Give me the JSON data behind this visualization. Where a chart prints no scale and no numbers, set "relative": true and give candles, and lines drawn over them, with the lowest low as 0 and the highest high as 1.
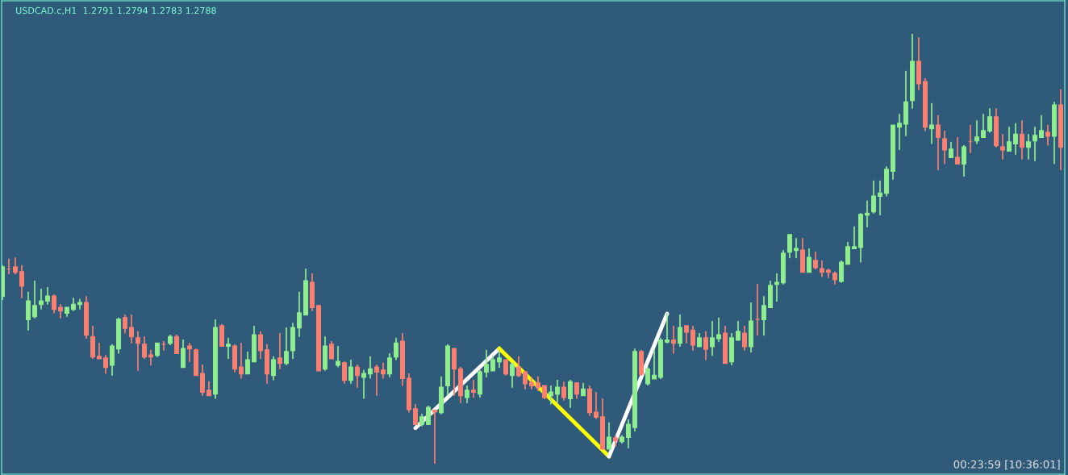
{
  "chart_data": {
    "type": "candlestick",
    "title": "USDCAD.c,H1  1.2791 1.2794 1.2783 1.2788",
    "relative": true,
    "colors": [
      "#90ee90",
      "#fa8072",
      "#fa8072",
      "#fa8072",
      "#90ee90",
      "#90ee90",
      "#90ee90",
      "#90ee90",
      "#fa8072",
      "#fa8072",
      "#90ee90",
      "#90ee90",
      "#90ee90",
      "#fa8072",
      "#fa8072",
      "#fa8072",
      "#fa8072",
      "#90ee90",
      "#90ee90",
      "#fa8072",
      "#fa8072",
      "#fa8072",
      "#fa8072",
      "#fa8072",
      "#90ee90",
      "#fa8072",
      "#90ee90",
      "#fa8072",
      "#90ee90",
      "#fa8072",
      "#fa8072",
      "#fa8072",
      "#fa8072",
      "#90ee90",
      "#fa8072",
      "#90ee90",
      "#fa8072",
      "#fa8072",
      "#90ee90",
      "#90ee90",
      "#fa8072",
      "#fa8072",
      "#90ee90",
      "#fa8072",
      "#90ee90",
      "#90ee90",
      "#90ee90",
      "#90ee90",
      "#fa8072",
      "#fa8072",
      "#90ee90",
      "#fa8072",
      "#90ee90",
      "#fa8072",
      "#90ee90",
      "#fa8072",
      "#90ee90",
      "#90ee90",
      "#fa8072",
      "#fa8072",
      "#90ee90",
      "#90ee90",
      "#fa8072",
      "#fa8072",
      "#fa8072",
      "#90ee90",
      "#90ee90",
      "#fa8072",
      "#90ee90",
      "#90ee90",
      "#fa8072",
      "#fa8072",
      "#90ee90",
      "#fa8072",
      "#90ee90",
      "#90ee90",
      "#90ee90",
      "#90ee90",
      "#fa8072",
      "#90ee90",
      "#fa8072",
      "#fa8072",
      "#fa8072",
      "#fa8072",
      "#fa8072",
      "#90ee90",
      "#90ee90",
      "#fa8072",
      "#90ee90",
      "#fa8072",
      "#90ee90",
      "#fa8072",
      "#fa8072",
      "#fa8072",
      "#90ee90",
      "#fa8072",
      "#90ee90",
      "#90ee90",
      "#90ee90",
      "#fa8072",
      "#90ee90",
      "#90ee90",
      "#90ee90",
      "#90ee90",
      "#fa8072",
      "#90ee90",
      "#fa8072",
      "#fa8072",
      "#90ee90",
      "#fa8072",
      "#90ee90",
      "#90ee90",
      "#fa8072",
      "#90ee90",
      "#90ee90",
      "#fa8072",
      "#90ee90",
      "#fa8072",
      "#90ee90",
      "#90ee90",
      "#90ee90",
      "#90ee90",
      "#90ee90",
      "#90ee90",
      "#fa8072",
      "#90ee90",
      "#fa8072",
      "#fa8072",
      "#fa8072",
      "#fa8072",
      "#90ee90",
      "#90ee90",
      "#90ee90",
      "#90ee90",
      "#90ee90",
      "#90ee90",
      "#90ee90",
      "#90ee90",
      "#90ee90",
      "#90ee90",
      "#90ee90",
      "#90ee90",
      "#fa8072",
      "#fa8072",
      "#90ee90",
      "#fa8072",
      "#fa8072",
      "#90ee90",
      "#fa8072",
      "#90ee90",
      "#fa8072",
      "#90ee90",
      "#90ee90",
      "#90ee90",
      "#fa8072",
      "#fa8072",
      "#90ee90",
      "#90ee90",
      "#fa8072",
      "#90ee90",
      "#90ee90",
      "#90ee90",
      "#fa8072",
      "#90ee90",
      "#fa8072"
    ],
    "annotations": [
      "00:23:59 [10:36:01]"
    ],
    "categories": [
      null,
      null,
      null,
      null,
      null,
      null,
      null,
      null,
      null,
      null,
      null,
      null,
      null,
      null,
      null,
      null,
      null,
      null,
      null,
      null,
      null,
      null,
      null,
      null,
      null,
      null,
      null,
      null,
      null,
      null,
      null,
      null,
      null,
      null,
      null,
      null,
      null,
      null,
      null,
      null,
      null,
      null,
      null,
      null,
      null,
      null,
      null,
      null,
      null,
      null,
      null,
      null,
      null,
      null,
      null,
      null,
      null,
      null,
      null,
      null,
      null,
      null,
      null,
      null,
      null,
      null,
      null,
      null,
      null,
      null,
      null,
      null,
      null,
      null,
      null,
      null,
      null,
      null,
      null,
      null,
      null,
      null,
      null,
      null,
      null,
      null,
      null,
      null,
      null,
      null,
      null,
      null,
      null,
      null,
      null,
      null,
      null,
      null,
      null,
      null,
      null,
      null,
      null,
      null,
      null,
      null,
      null,
      null,
      null,
      null,
      null,
      null,
      null,
      null,
      null,
      null,
      null,
      null,
      null,
      null,
      null,
      null,
      null,
      null,
      null,
      null,
      null,
      null,
      null,
      null,
      null,
      null,
      null,
      null,
      null,
      null,
      null,
      null,
      null,
      null,
      null,
      null,
      null,
      null,
      null,
      null,
      null,
      null,
      null,
      null,
      null,
      null,
      null,
      null,
      null,
      null,
      null,
      null,
      null,
      null,
      null,
      null,
      null,
      null,
      null
    ],
    "ohlc": [
      [
        0.389,
        0.462,
        0.381,
        0.458
      ],
      [
        0.453,
        0.477,
        0.441,
        0.453
      ],
      [
        0.458,
        0.48,
        0.441,
        0.445
      ],
      [
        0.447,
        0.462,
        0.385,
        0.413
      ],
      [
        0.335,
        0.4,
        0.31,
        0.379
      ],
      [
        0.342,
        0.426,
        0.338,
        0.368
      ],
      [
        0.37,
        0.407,
        0.359,
        0.379
      ],
      [
        0.378,
        0.411,
        0.37,
        0.39
      ],
      [
        0.39,
        0.394,
        0.35,
        0.359
      ],
      [
        0.364,
        0.371,
        0.338,
        0.355
      ],
      [
        0.35,
        0.364,
        0.342,
        0.364
      ],
      [
        0.359,
        0.386,
        0.355,
        0.371
      ],
      [
        0.37,
        0.383,
        0.359,
        0.375
      ],
      [
        0.375,
        0.39,
        0.291,
        0.299
      ],
      [
        0.296,
        0.321,
        0.244,
        0.248
      ],
      [
        0.25,
        0.281,
        0.244,
        0.244
      ],
      [
        0.246,
        0.253,
        0.209,
        0.224
      ],
      [
        0.229,
        0.278,
        0.205,
        0.274
      ],
      [
        0.267,
        0.34,
        0.256,
        0.336
      ],
      [
        0.34,
        0.347,
        0.303,
        0.315
      ],
      [
        0.317,
        0.347,
        0.28,
        0.295
      ],
      [
        0.293,
        0.308,
        0.216,
        0.28
      ],
      [
        0.278,
        0.296,
        0.244,
        0.248
      ],
      [
        0.253,
        0.265,
        0.229,
        0.248
      ],
      [
        0.252,
        0.281,
        0.248,
        0.281
      ],
      [
        0.278,
        0.285,
        0.263,
        0.278
      ],
      [
        0.28,
        0.3,
        0.276,
        0.296
      ],
      [
        0.296,
        0.3,
        0.256,
        0.256
      ],
      [
        0.224,
        0.289,
        0.224,
        0.268
      ],
      [
        0.274,
        0.281,
        0.237,
        0.267
      ],
      [
        0.265,
        0.268,
        0.205,
        0.205
      ],
      [
        0.21,
        0.231,
        0.158,
        0.166
      ],
      [
        0.171,
        0.192,
        0.158,
        0.158
      ],
      [
        0.162,
        0.336,
        0.151,
        0.317
      ],
      [
        0.321,
        0.325,
        0.273,
        0.273
      ],
      [
        0.273,
        0.293,
        0.244,
        0.278
      ],
      [
        0.274,
        0.278,
        0.213,
        0.22
      ],
      [
        0.225,
        0.281,
        0.198,
        0.209
      ],
      [
        0.209,
        0.261,
        0.209,
        0.242
      ],
      [
        0.237,
        0.321,
        0.237,
        0.3
      ],
      [
        0.3,
        0.308,
        0.244,
        0.263
      ],
      [
        0.265,
        0.278,
        0.186,
        0.209
      ],
      [
        0.205,
        0.25,
        0.194,
        0.242
      ],
      [
        0.246,
        0.304,
        0.22,
        0.233
      ],
      [
        0.233,
        0.317,
        0.229,
        0.261
      ],
      [
        0.263,
        0.328,
        0.244,
        0.317
      ],
      [
        0.316,
        0.4,
        0.295,
        0.351
      ],
      [
        0.346,
        0.454,
        0.346,
        0.426
      ],
      [
        0.422,
        0.443,
        0.355,
        0.363
      ],
      [
        0.368,
        0.368,
        0.216,
        0.216
      ],
      [
        0.22,
        0.296,
        0.216,
        0.274
      ],
      [
        0.278,
        0.285,
        0.244,
        0.244
      ],
      [
        0.229,
        0.274,
        0.224,
        0.238
      ],
      [
        0.235,
        0.238,
        0.186,
        0.194
      ],
      [
        0.194,
        0.242,
        0.186,
        0.225
      ],
      [
        0.225,
        0.231,
        0.177,
        0.205
      ],
      [
        0.201,
        0.218,
        0.151,
        0.21
      ],
      [
        0.209,
        0.25,
        0.198,
        0.221
      ],
      [
        0.225,
        0.231,
        0.158,
        0.213
      ],
      [
        0.218,
        0.235,
        0.198,
        0.209
      ],
      [
        0.209,
        0.257,
        0.201,
        0.246
      ],
      [
        0.248,
        0.293,
        0.241,
        0.281
      ],
      [
        0.285,
        0.304,
        0.181,
        0.198
      ],
      [
        0.199,
        0.21,
        0.119,
        0.126
      ],
      [
        0.128,
        0.139,
        0.091,
        0.091
      ],
      [
        0.091,
        0.116,
        0.087,
        0.109
      ],
      [
        0.091,
        0.135,
        0.091,
        0.131
      ],
      [
        0.124,
        0.126,
        0.0,
        0.12
      ],
      [
        0.119,
        0.203,
        0.115,
        0.178
      ],
      [
        0.181,
        0.278,
        0.159,
        0.274
      ],
      [
        0.268,
        0.268,
        0.158,
        0.22
      ],
      [
        0.221,
        0.225,
        0.141,
        0.158
      ],
      [
        0.154,
        0.182,
        0.141,
        0.171
      ],
      [
        0.171,
        0.195,
        0.154,
        0.166
      ],
      [
        0.162,
        0.218,
        0.154,
        0.214
      ],
      [
        0.213,
        0.265,
        0.201,
        0.231
      ],
      [
        0.216,
        0.25,
        0.216,
        0.242
      ],
      [
        0.237,
        0.263,
        0.223,
        0.246
      ],
      [
        0.242,
        0.242,
        0.205,
        0.209
      ],
      [
        0.205,
        0.235,
        0.177,
        0.231
      ],
      [
        0.225,
        0.25,
        0.201,
        0.205
      ],
      [
        0.214,
        0.214,
        0.173,
        0.186
      ],
      [
        0.189,
        0.201,
        0.173,
        0.181
      ],
      [
        0.188,
        0.203,
        0.169,
        0.177
      ],
      [
        0.182,
        0.182,
        0.15,
        0.154
      ],
      [
        0.158,
        0.182,
        0.138,
        0.167
      ],
      [
        0.162,
        0.195,
        0.141,
        0.178
      ],
      [
        0.178,
        0.191,
        0.147,
        0.154
      ],
      [
        0.151,
        0.195,
        0.13,
        0.191
      ],
      [
        0.188,
        0.188,
        0.151,
        0.162
      ],
      [
        0.158,
        0.188,
        0.158,
        0.174
      ],
      [
        0.174,
        0.182,
        0.111,
        0.119
      ],
      [
        0.12,
        0.167,
        0.104,
        0.108
      ],
      [
        0.109,
        0.152,
        0.034,
        0.034
      ],
      [
        0.034,
        0.096,
        0.034,
        0.062
      ],
      [
        0.06,
        0.066,
        0.041,
        0.053
      ],
      [
        0.051,
        0.066,
        0.047,
        0.062
      ],
      [
        0.061,
        0.103,
        0.036,
        0.092
      ],
      [
        0.084,
        0.268,
        0.075,
        0.261
      ],
      [
        0.261,
        0.265,
        0.205,
        0.208
      ],
      [
        0.186,
        0.225,
        0.182,
        0.221
      ],
      [
        0.197,
        0.265,
        0.197,
        0.206
      ],
      [
        0.201,
        0.293,
        0.197,
        0.288
      ],
      [
        0.283,
        0.351,
        0.28,
        0.288
      ],
      [
        0.288,
        0.321,
        0.256,
        0.28
      ],
      [
        0.28,
        0.347,
        0.272,
        0.317
      ],
      [
        0.321,
        0.321,
        0.28,
        0.306
      ],
      [
        0.311,
        0.321,
        0.263,
        0.276
      ],
      [
        0.272,
        0.304,
        0.272,
        0.293
      ],
      [
        0.293,
        0.308,
        0.241,
        0.266
      ],
      [
        0.272,
        0.332,
        0.251,
        0.293
      ],
      [
        0.291,
        0.34,
        0.283,
        0.3
      ],
      [
        0.304,
        0.321,
        0.233,
        0.233
      ],
      [
        0.237,
        0.304,
        0.229,
        0.293
      ],
      [
        0.287,
        0.332,
        0.287,
        0.308
      ],
      [
        0.304,
        0.321,
        0.263,
        0.272
      ],
      [
        0.272,
        0.375,
        0.259,
        0.332
      ],
      [
        0.336,
        0.418,
        0.298,
        0.336
      ],
      [
        0.335,
        0.39,
        0.298,
        0.368
      ],
      [
        0.363,
        0.426,
        0.363,
        0.415
      ],
      [
        0.417,
        0.443,
        0.377,
        0.422
      ],
      [
        0.421,
        0.497,
        0.417,
        0.49
      ],
      [
        0.492,
        0.533,
        0.478,
        0.533
      ],
      [
        0.496,
        0.525,
        0.478,
        0.501
      ],
      [
        0.497,
        0.525,
        0.445,
        0.445
      ],
      [
        0.445,
        0.501,
        0.445,
        0.48
      ],
      [
        0.473,
        0.493,
        0.452,
        0.456
      ],
      [
        0.454,
        0.473,
        0.435,
        0.445
      ],
      [
        0.45,
        0.454,
        0.432,
        0.445
      ],
      [
        0.443,
        0.447,
        0.417,
        0.428
      ],
      [
        0.424,
        0.473,
        0.421,
        0.469
      ],
      [
        0.464,
        0.516,
        0.464,
        0.505
      ],
      [
        0.5,
        0.552,
        0.5,
        0.505
      ],
      [
        0.503,
        0.583,
        0.468,
        0.58
      ],
      [
        0.578,
        0.612,
        0.55,
        0.583
      ],
      [
        0.586,
        0.659,
        0.582,
        0.623
      ],
      [
        0.622,
        0.659,
        0.578,
        0.63
      ],
      [
        0.629,
        0.692,
        0.622,
        0.685
      ],
      [
        0.68,
        0.788,
        0.661,
        0.788
      ],
      [
        0.783,
        0.814,
        0.73,
        0.792
      ],
      [
        0.79,
        0.914,
        0.762,
        0.842
      ],
      [
        0.845,
        1.0,
        0.826,
        0.936
      ],
      [
        0.936,
        0.992,
        0.869,
        0.884
      ],
      [
        0.889,
        0.897,
        0.774,
        0.783
      ],
      [
        0.779,
        0.839,
        0.744,
        0.788
      ],
      [
        0.788,
        0.811,
        0.683,
        0.759
      ],
      [
        0.756,
        0.775,
        0.697,
        0.73
      ],
      [
        0.712,
        0.749,
        0.712,
        0.732
      ],
      [
        0.713,
        0.76,
        0.697,
        0.697
      ],
      [
        0.697,
        0.741,
        0.668,
        0.737
      ],
      [
        0.749,
        0.788,
        0.723,
        0.749
      ],
      [
        0.751,
        0.799,
        0.744,
        0.76
      ],
      [
        0.759,
        0.814,
        0.759,
        0.775
      ],
      [
        0.774,
        0.827,
        0.77,
        0.807
      ],
      [
        0.807,
        0.827,
        0.736,
        0.74
      ],
      [
        0.737,
        0.767,
        0.708,
        0.73
      ],
      [
        0.727,
        0.784,
        0.727,
        0.749
      ],
      [
        0.744,
        0.792,
        0.719,
        0.767
      ],
      [
        0.767,
        0.799,
        0.708,
        0.736
      ],
      [
        0.736,
        0.767,
        0.708,
        0.749
      ],
      [
        0.751,
        0.784,
        0.704,
        0.764
      ],
      [
        0.759,
        0.811,
        0.759,
        0.775
      ],
      [
        0.771,
        0.788,
        0.74,
        0.762
      ],
      [
        0.762,
        0.842,
        0.697,
        0.835
      ],
      [
        0.835,
        0.871,
        0.683,
        0.736
      ]
    ],
    "series": [
      {
        "type": "line",
        "color": "#ffffff",
        "values": [
          null,
          null,
          null,
          null,
          null,
          null,
          null,
          null,
          null,
          null,
          null,
          null,
          null,
          null,
          null,
          null,
          null,
          null,
          null,
          null,
          null,
          null,
          null,
          null,
          null,
          null,
          null,
          null,
          null,
          null,
          null,
          null,
          null,
          null,
          null,
          null,
          null,
          null,
          null,
          null,
          null,
          null,
          null,
          null,
          null,
          null,
          null,
          null,
          null,
          null,
          null,
          null,
          null,
          null,
          null,
          null,
          null,
          null,
          null,
          null,
          null,
          null,
          null,
          null,
          0.083,
          null,
          null,
          null,
          null,
          null,
          null,
          null,
          null,
          null,
          null,
          null,
          null,
          0.268,
          null,
          null,
          null,
          null,
          null,
          null,
          null,
          null,
          null,
          null,
          null,
          null,
          null,
          null,
          null,
          null,
          null,
          null,
          null,
          null,
          null,
          null,
          null,
          null,
          null,
          null,
          null,
          null,
          null,
          null,
          null,
          null,
          null,
          null,
          null,
          null,
          null,
          null,
          null,
          null,
          null,
          null,
          null,
          null,
          null,
          null,
          null,
          null,
          null,
          null,
          null,
          null,
          null,
          null,
          null,
          null,
          null,
          null,
          null,
          null,
          null,
          null,
          null,
          null,
          null,
          null,
          null,
          null,
          null,
          null,
          null,
          null,
          null,
          null,
          null,
          null,
          null,
          null,
          null,
          null,
          null,
          null,
          null,
          null,
          null,
          null,
          null
        ]
      },
      {
        "type": "line",
        "color": "#ffff00",
        "values": [
          null,
          null,
          null,
          null,
          null,
          null,
          null,
          null,
          null,
          null,
          null,
          null,
          null,
          null,
          null,
          null,
          null,
          null,
          null,
          null,
          null,
          null,
          null,
          null,
          null,
          null,
          null,
          null,
          null,
          null,
          null,
          null,
          null,
          null,
          null,
          null,
          null,
          null,
          null,
          null,
          null,
          null,
          null,
          null,
          null,
          null,
          null,
          null,
          null,
          null,
          null,
          null,
          null,
          null,
          null,
          null,
          null,
          null,
          null,
          null,
          null,
          null,
          null,
          null,
          null,
          null,
          null,
          null,
          null,
          null,
          null,
          null,
          null,
          null,
          null,
          null,
          null,
          0.268,
          null,
          null,
          null,
          null,
          null,
          null,
          null,
          null,
          null,
          null,
          null,
          null,
          null,
          null,
          null,
          null,
          0.017,
          null,
          null,
          null,
          null,
          null,
          null,
          null,
          null,
          null,
          null,
          null,
          null,
          null,
          null,
          null,
          null,
          null,
          null,
          null,
          null,
          null,
          null,
          null,
          null,
          null,
          null,
          null,
          null,
          null,
          null,
          null,
          null,
          null,
          null,
          null,
          null,
          null,
          null,
          null,
          null,
          null,
          null,
          null,
          null,
          null,
          null,
          null,
          null,
          null,
          null,
          null,
          null,
          null,
          null,
          null,
          null,
          null,
          null,
          null,
          null,
          null,
          null,
          null,
          null,
          null,
          null,
          null,
          null,
          null,
          null
        ]
      },
      {
        "type": "line",
        "color": "#ffffff",
        "values": [
          null,
          null,
          null,
          null,
          null,
          null,
          null,
          null,
          null,
          null,
          null,
          null,
          null,
          null,
          null,
          null,
          null,
          null,
          null,
          null,
          null,
          null,
          null,
          null,
          null,
          null,
          null,
          null,
          null,
          null,
          null,
          null,
          null,
          null,
          null,
          null,
          null,
          null,
          null,
          null,
          null,
          null,
          null,
          null,
          null,
          null,
          null,
          null,
          null,
          null,
          null,
          null,
          null,
          null,
          null,
          null,
          null,
          null,
          null,
          null,
          null,
          null,
          null,
          null,
          null,
          null,
          null,
          null,
          null,
          null,
          null,
          null,
          null,
          null,
          null,
          null,
          null,
          null,
          null,
          null,
          null,
          null,
          null,
          null,
          null,
          null,
          null,
          null,
          null,
          null,
          null,
          null,
          null,
          null,
          0.017,
          null,
          null,
          null,
          null,
          null,
          null,
          null,
          null,
          0.349,
          null,
          null,
          null,
          null,
          null,
          null,
          null,
          null,
          null,
          null,
          null,
          null,
          null,
          null,
          null,
          null,
          null,
          null,
          null,
          null,
          null,
          null,
          null,
          null,
          null,
          null,
          null,
          null,
          null,
          null,
          null,
          null,
          null,
          null,
          null,
          null,
          null,
          null,
          null,
          null,
          null,
          null,
          null,
          null,
          null,
          null,
          null,
          null,
          null,
          null,
          null,
          null,
          null,
          null,
          null,
          null,
          null,
          null,
          null,
          null,
          null
        ]
      }
    ]
  }
}
